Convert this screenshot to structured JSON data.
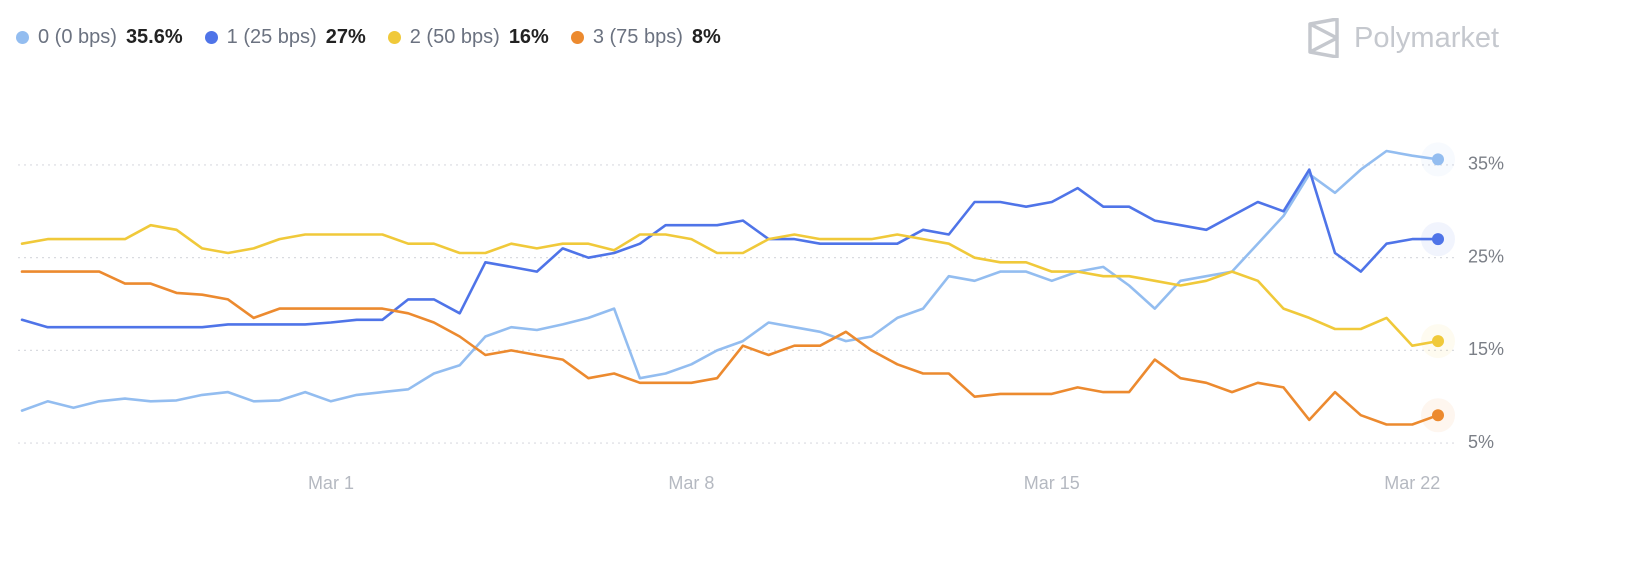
{
  "chart_data": {
    "type": "line",
    "watermark": "Polymarket",
    "categories": [
      null,
      null,
      null,
      null,
      null,
      null,
      null,
      null,
      null,
      null,
      null,
      null,
      "Mar 1",
      null,
      null,
      null,
      null,
      null,
      null,
      null,
      null,
      null,
      null,
      null,
      null,
      null,
      "Mar 8",
      null,
      null,
      null,
      null,
      null,
      null,
      null,
      null,
      null,
      null,
      null,
      null,
      null,
      "Mar 15",
      null,
      null,
      null,
      null,
      null,
      null,
      null,
      null,
      null,
      null,
      null,
      null,
      null,
      "Mar 22",
      null
    ],
    "ylim": [
      3,
      40
    ],
    "yticks": [
      {
        "value": 5,
        "label": "5%"
      },
      {
        "value": 15,
        "label": "15%"
      },
      {
        "value": 25,
        "label": "25%"
      },
      {
        "value": 35,
        "label": "35%"
      }
    ],
    "grid": true,
    "series": [
      {
        "name": "0 (0 bps)",
        "color": "#93bdf0",
        "last_label": "35.6%",
        "values": [
          8.5,
          9.5,
          8.8,
          9.5,
          9.8,
          9.5,
          9.6,
          10.2,
          10.5,
          9.5,
          9.6,
          10.5,
          9.5,
          10.2,
          10.5,
          10.8,
          12.5,
          13.4,
          16.5,
          17.5,
          17.2,
          17.8,
          18.5,
          19.5,
          12,
          12.5,
          13.5,
          15,
          16,
          18,
          17.5,
          17,
          16,
          16.5,
          18.5,
          19.5,
          23,
          22.5,
          23.5,
          23.5,
          22.5,
          23.5,
          24,
          22,
          19.5,
          22.5,
          23,
          23.5,
          26.5,
          29.5,
          34,
          32,
          34.5,
          36.5,
          36,
          35.6
        ]
      },
      {
        "name": "1 (25 bps)",
        "color": "#4f74e8",
        "last_label": "27%",
        "values": [
          18.3,
          17.5,
          17.5,
          17.5,
          17.5,
          17.5,
          17.5,
          17.5,
          17.8,
          17.8,
          17.8,
          17.8,
          18,
          18.3,
          18.3,
          20.5,
          20.5,
          19,
          24.5,
          24,
          23.5,
          26,
          25,
          25.5,
          26.5,
          28.5,
          28.5,
          28.5,
          29,
          27,
          27,
          26.5,
          26.5,
          26.5,
          26.5,
          28,
          27.5,
          31,
          31,
          30.5,
          31,
          32.5,
          30.5,
          30.5,
          29,
          28.5,
          28,
          29.5,
          31,
          30,
          34.5,
          25.5,
          23.5,
          26.5,
          27,
          27
        ]
      },
      {
        "name": "2 (50 bps)",
        "color": "#f0c93a",
        "last_label": "16%",
        "values": [
          26.5,
          27,
          27,
          27,
          27,
          28.5,
          28,
          26,
          25.5,
          26,
          27,
          27.5,
          27.5,
          27.5,
          27.5,
          26.5,
          26.5,
          25.5,
          25.5,
          26.5,
          26,
          26.5,
          26.5,
          25.8,
          27.5,
          27.5,
          27,
          25.5,
          25.5,
          27,
          27.5,
          27,
          27,
          27,
          27.5,
          27,
          26.5,
          25,
          24.5,
          24.5,
          23.5,
          23.5,
          23,
          23,
          22.5,
          22,
          22.5,
          23.5,
          22.5,
          19.5,
          18.5,
          17.3,
          17.3,
          18.5,
          15.5,
          16
        ]
      },
      {
        "name": "3 (75 bps)",
        "color": "#ec8a2f",
        "last_label": "8%",
        "values": [
          23.5,
          23.5,
          23.5,
          23.5,
          22.2,
          22.2,
          21.2,
          21,
          20.5,
          18.5,
          19.5,
          19.5,
          19.5,
          19.5,
          19.5,
          19,
          18,
          16.5,
          14.5,
          15,
          14.5,
          14,
          12,
          12.5,
          11.5,
          11.5,
          11.5,
          12,
          15.5,
          14.5,
          15.5,
          15.5,
          17,
          15,
          13.5,
          12.5,
          12.5,
          10,
          10.3,
          10.3,
          10.3,
          11,
          10.5,
          10.5,
          14,
          12,
          11.5,
          10.5,
          11.5,
          11,
          7.5,
          10.5,
          8,
          7,
          7,
          8
        ]
      }
    ]
  }
}
